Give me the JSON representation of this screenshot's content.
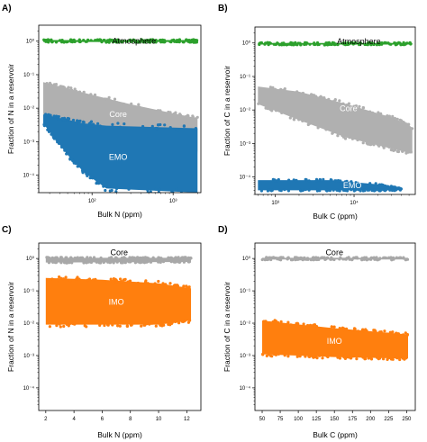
{
  "chart_data": [
    {
      "panel": "A)",
      "type": "scatter",
      "xlabel": "Bulk N (ppm)",
      "ylabel": "Fraction of N in a reservoir",
      "xscale": "log",
      "yscale": "log",
      "xlim": [
        22,
        2200
      ],
      "ylim": [
        3e-05,
        3
      ],
      "xticks": [
        {
          "v": 100,
          "t": "10²"
        },
        {
          "v": 1000,
          "t": "10³"
        }
      ],
      "yticks": [
        {
          "v": 1,
          "t": "10⁰"
        },
        {
          "v": 0.1,
          "t": "10⁻¹"
        },
        {
          "v": 0.01,
          "t": "10⁻²"
        },
        {
          "v": 0.001,
          "t": "10⁻³"
        },
        {
          "v": 0.0001,
          "t": "10⁻⁴"
        }
      ],
      "series": [
        {
          "name": "Atmosphere",
          "color": "#2ca02c",
          "band": [
            [
              25,
              0.95,
              1.08
            ],
            [
              2000,
              0.95,
              1.08
            ]
          ]
        },
        {
          "name": "Core",
          "color": "#b0b0b0",
          "band": [
            [
              25,
              0.006,
              0.06
            ],
            [
              100,
              0.003,
              0.025
            ],
            [
              300,
              0.0015,
              0.013
            ],
            [
              1000,
              0.0008,
              0.007
            ],
            [
              2000,
              0.0005,
              0.005
            ]
          ]
        },
        {
          "name": "EMO",
          "color": "#1f77b4",
          "band": [
            [
              25,
              0.0035,
              0.0065
            ],
            [
              50,
              0.0004,
              0.0045
            ],
            [
              80,
              0.00012,
              0.0035
            ],
            [
              150,
              4e-05,
              0.003
            ],
            [
              2000,
              3e-05,
              0.0025
            ]
          ]
        }
      ]
    },
    {
      "panel": "B)",
      "type": "scatter",
      "xlabel": "Bulk C (ppm)",
      "ylabel": "Fraction of C in a reservoir",
      "xscale": "log",
      "yscale": "log",
      "xlim": [
        550,
        60000
      ],
      "ylim": [
        3e-05,
        3
      ],
      "xticks": [
        {
          "v": 1000,
          "t": "10³"
        },
        {
          "v": 10000,
          "t": "10⁴"
        }
      ],
      "yticks": [
        {
          "v": 1,
          "t": "10⁰"
        },
        {
          "v": 0.1,
          "t": "10⁻¹"
        },
        {
          "v": 0.01,
          "t": "10⁻²"
        },
        {
          "v": 0.001,
          "t": "10⁻³"
        },
        {
          "v": 0.0001,
          "t": "10⁻⁴"
        }
      ],
      "series": [
        {
          "name": "Atmosphere",
          "color": "#2ca02c",
          "band": [
            [
              600,
              0.9,
              1.0
            ],
            [
              55000,
              0.9,
              1.0
            ]
          ]
        },
        {
          "name": "Core",
          "color": "#b0b0b0",
          "band": [
            [
              600,
              0.015,
              0.05
            ],
            [
              2000,
              0.005,
              0.035
            ],
            [
              8000,
              0.0015,
              0.015
            ],
            [
              30000,
              0.0007,
              0.006
            ],
            [
              55000,
              0.0005,
              0.003
            ]
          ]
        },
        {
          "name": "EMO",
          "color": "#1f77b4",
          "band": [
            [
              600,
              4e-05,
              8e-05
            ],
            [
              5000,
              4e-05,
              8e-05
            ],
            [
              20000,
              4e-05,
              6e-05
            ],
            [
              40000,
              4e-05,
              4.5e-05
            ]
          ]
        }
      ]
    },
    {
      "panel": "C)",
      "type": "scatter",
      "xlabel": "Bulk N (ppm)",
      "ylabel": "Fraction of N in a reservoir",
      "xscale": "linear",
      "yscale": "log",
      "xlim": [
        1.5,
        13
      ],
      "ylim": [
        2e-05,
        3
      ],
      "xticks": [
        {
          "v": 2,
          "t": "2"
        },
        {
          "v": 4,
          "t": "4"
        },
        {
          "v": 6,
          "t": "6"
        },
        {
          "v": 8,
          "t": "8"
        },
        {
          "v": 10,
          "t": "10"
        },
        {
          "v": 12,
          "t": "12"
        }
      ],
      "yticks": [
        {
          "v": 1,
          "t": "10⁰"
        },
        {
          "v": 0.1,
          "t": "10⁻¹"
        },
        {
          "v": 0.01,
          "t": "10⁻²"
        },
        {
          "v": 0.001,
          "t": "10⁻³"
        },
        {
          "v": 0.0001,
          "t": "10⁻⁴"
        }
      ],
      "series": [
        {
          "name": "Core",
          "color": "#a8a8a8",
          "band": [
            [
              2,
              0.75,
              1.05
            ],
            [
              12.3,
              0.78,
              1.05
            ]
          ]
        },
        {
          "name": "IMO",
          "color": "#ff7f0e",
          "band": [
            [
              2,
              0.009,
              0.25
            ],
            [
              6,
              0.009,
              0.22
            ],
            [
              10,
              0.009,
              0.17
            ],
            [
              12.3,
              0.012,
              0.12
            ]
          ]
        }
      ]
    },
    {
      "panel": "D)",
      "type": "scatter",
      "xlabel": "Bulk C (ppm)",
      "ylabel": "Fraction of C in a reservoir",
      "xscale": "linear",
      "yscale": "log",
      "xlim": [
        40,
        262
      ],
      "ylim": [
        2e-05,
        3
      ],
      "xticks": [
        {
          "v": 50,
          "t": "50"
        },
        {
          "v": 75,
          "t": "75"
        },
        {
          "v": 100,
          "t": "100"
        },
        {
          "v": 125,
          "t": "125"
        },
        {
          "v": 150,
          "t": "150"
        },
        {
          "v": 175,
          "t": "175"
        },
        {
          "v": 200,
          "t": "200"
        },
        {
          "v": 225,
          "t": "225"
        },
        {
          "v": 250,
          "t": "250"
        }
      ],
      "yticks": [
        {
          "v": 1,
          "t": "10⁰"
        },
        {
          "v": 0.1,
          "t": "10⁻¹"
        },
        {
          "v": 0.01,
          "t": "10⁻²"
        },
        {
          "v": 0.001,
          "t": "10⁻³"
        },
        {
          "v": 0.0001,
          "t": "10⁻⁴"
        }
      ],
      "series": [
        {
          "name": "Core",
          "color": "#a8a8a8",
          "band": [
            [
              50,
              0.93,
              1.05
            ],
            [
              252,
              0.93,
              1.05
            ]
          ]
        },
        {
          "name": "IMO",
          "color": "#ff7f0e",
          "band": [
            [
              50,
              0.0011,
              0.012
            ],
            [
              150,
              0.0009,
              0.007
            ],
            [
              252,
              0.0008,
              0.0045
            ]
          ]
        }
      ]
    }
  ]
}
